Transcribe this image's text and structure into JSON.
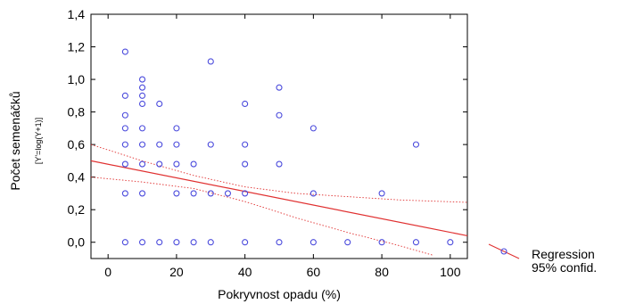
{
  "chart_data": {
    "type": "scatter",
    "xlabel": "Pokryvnost opadu (%)",
    "ylabel": "Počet semenáčků",
    "ylabel_sub": "[Y'=log(Y+1)]",
    "xlim": [
      -5,
      105
    ],
    "ylim": [
      -0.1,
      1.4
    ],
    "x_ticks": [
      "0",
      "20",
      "40",
      "60",
      "80",
      "100"
    ],
    "x_tick_values": [
      0,
      20,
      40,
      60,
      80,
      100
    ],
    "y_ticks": [
      "0,0",
      "0,2",
      "0,4",
      "0,6",
      "0,8",
      "1,0",
      "1,2",
      "1,4"
    ],
    "y_tick_values": [
      0,
      0.2,
      0.4,
      0.6,
      0.8,
      1.0,
      1.2,
      1.4
    ],
    "points": [
      {
        "x": 5,
        "y": 1.17
      },
      {
        "x": 5,
        "y": 0.9
      },
      {
        "x": 5,
        "y": 0.78
      },
      {
        "x": 5,
        "y": 0.7
      },
      {
        "x": 5,
        "y": 0.6
      },
      {
        "x": 5,
        "y": 0.48
      },
      {
        "x": 5,
        "y": 0.3
      },
      {
        "x": 5,
        "y": 0.0
      },
      {
        "x": 10,
        "y": 1.0
      },
      {
        "x": 10,
        "y": 0.95
      },
      {
        "x": 10,
        "y": 0.9
      },
      {
        "x": 10,
        "y": 0.85
      },
      {
        "x": 10,
        "y": 0.7
      },
      {
        "x": 10,
        "y": 0.6
      },
      {
        "x": 10,
        "y": 0.48
      },
      {
        "x": 10,
        "y": 0.3
      },
      {
        "x": 10,
        "y": 0.0
      },
      {
        "x": 15,
        "y": 0.85
      },
      {
        "x": 15,
        "y": 0.6
      },
      {
        "x": 15,
        "y": 0.48
      },
      {
        "x": 15,
        "y": 0.0
      },
      {
        "x": 20,
        "y": 0.7
      },
      {
        "x": 20,
        "y": 0.6
      },
      {
        "x": 20,
        "y": 0.48
      },
      {
        "x": 20,
        "y": 0.3
      },
      {
        "x": 20,
        "y": 0.0
      },
      {
        "x": 25,
        "y": 0.48
      },
      {
        "x": 25,
        "y": 0.3
      },
      {
        "x": 25,
        "y": 0.0
      },
      {
        "x": 30,
        "y": 1.11
      },
      {
        "x": 30,
        "y": 0.6
      },
      {
        "x": 30,
        "y": 0.3
      },
      {
        "x": 30,
        "y": 0.0
      },
      {
        "x": 35,
        "y": 0.3
      },
      {
        "x": 40,
        "y": 0.85
      },
      {
        "x": 40,
        "y": 0.6
      },
      {
        "x": 40,
        "y": 0.48
      },
      {
        "x": 40,
        "y": 0.3
      },
      {
        "x": 40,
        "y": 0.0
      },
      {
        "x": 50,
        "y": 0.95
      },
      {
        "x": 50,
        "y": 0.78
      },
      {
        "x": 50,
        "y": 0.48
      },
      {
        "x": 50,
        "y": 0.0
      },
      {
        "x": 60,
        "y": 0.7
      },
      {
        "x": 60,
        "y": 0.3
      },
      {
        "x": 60,
        "y": 0.0
      },
      {
        "x": 70,
        "y": 0.0
      },
      {
        "x": 80,
        "y": 0.3
      },
      {
        "x": 80,
        "y": 0.0
      },
      {
        "x": 90,
        "y": 0.6
      },
      {
        "x": 90,
        "y": 0.0
      },
      {
        "x": 100,
        "y": 0.0
      }
    ],
    "regression": {
      "x": [
        -5,
        105
      ],
      "y": [
        0.5,
        0.04
      ]
    },
    "ci_upper": {
      "x": [
        -5,
        10,
        25,
        40,
        55,
        70,
        85,
        105
      ],
      "y": [
        0.6,
        0.5,
        0.41,
        0.34,
        0.3,
        0.28,
        0.26,
        0.245
      ]
    },
    "ci_lower": {
      "x": [
        -5,
        10,
        25,
        40,
        55,
        70,
        85,
        95
      ],
      "y": [
        0.4,
        0.37,
        0.33,
        0.25,
        0.15,
        0.06,
        -0.02,
        -0.08
      ]
    },
    "point_color": "#4a4adc",
    "line_color": "#e03030",
    "legend": {
      "placement": "right",
      "entries": [
        "Regression",
        "95% confid."
      ]
    }
  }
}
